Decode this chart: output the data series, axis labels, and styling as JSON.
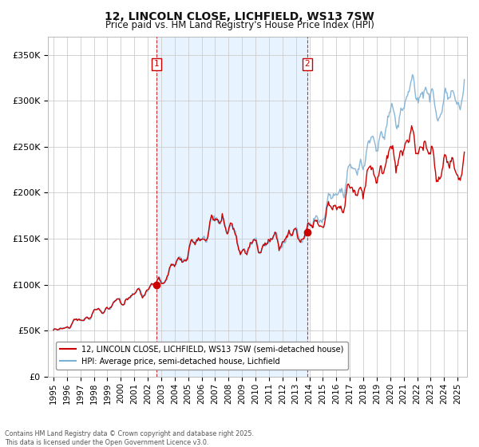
{
  "title": "12, LINCOLN CLOSE, LICHFIELD, WS13 7SW",
  "subtitle": "Price paid vs. HM Land Registry's House Price Index (HPI)",
  "ylim": [
    0,
    370000
  ],
  "yticks": [
    0,
    50000,
    100000,
    150000,
    200000,
    250000,
    300000,
    350000
  ],
  "ytick_labels": [
    "£0",
    "£50K",
    "£100K",
    "£150K",
    "£200K",
    "£250K",
    "£300K",
    "£350K"
  ],
  "red_color": "#cc0000",
  "blue_color": "#7bafd4",
  "shade_color": "#ddeeff",
  "legend_label_red": "12, LINCOLN CLOSE, LICHFIELD, WS13 7SW (semi-detached house)",
  "legend_label_blue": "HPI: Average price, semi-detached house, Lichfield",
  "ann1": {
    "num": "1",
    "year": 2002.67,
    "value": 99995
  },
  "ann2": {
    "num": "2",
    "year": 2013.84,
    "value": 157000
  },
  "footnote": "Contains HM Land Registry data © Crown copyright and database right 2025.\nThis data is licensed under the Open Government Licence v3.0.",
  "background_color": "#ffffff",
  "grid_color": "#cccccc"
}
